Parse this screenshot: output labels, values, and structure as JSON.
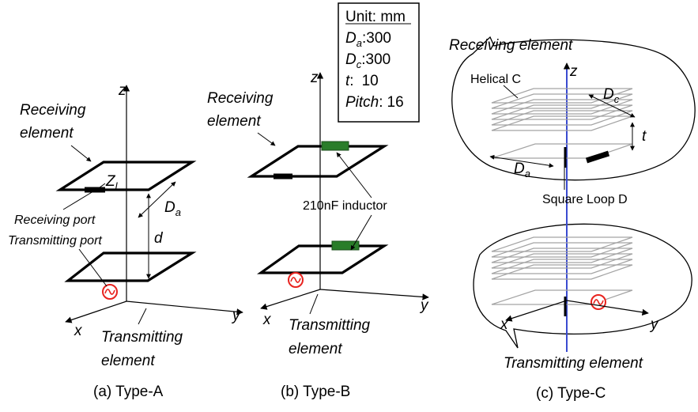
{
  "units_box": {
    "title": "Unit: mm",
    "rows": [
      {
        "sym": "D",
        "sub": "a",
        "sep": ":",
        "value": "300"
      },
      {
        "sym": "D",
        "sub": "c",
        "sep": ":",
        "value": "300"
      },
      {
        "sym": "t",
        "sub": "",
        "sep": ":",
        "value": "10"
      },
      {
        "sym": "Pitch",
        "sub": "",
        "sep": ":",
        "value": "16"
      }
    ]
  },
  "panel_a": {
    "caption": "(a) Type-A",
    "receiving_1": "Receiving",
    "receiving_2": "element",
    "transmitting_1": "Transmitting",
    "transmitting_2": "element",
    "receiving_port": "Receiving port",
    "transmitting_port": "Transmitting port",
    "load_sym": "Z",
    "load_sub": "l",
    "da_sym": "D",
    "da_sub": "a",
    "dist": "d",
    "axis_x": "x",
    "axis_y": "y",
    "axis_z": "z"
  },
  "panel_b": {
    "caption": "(b) Type-B",
    "receiving_1": "Receiving",
    "receiving_2": "element",
    "transmitting_1": "Transmitting",
    "transmitting_2": "element",
    "inductor": "210nF inductor",
    "axis_x": "x",
    "axis_y": "y",
    "axis_z": "z"
  },
  "panel_c": {
    "caption": "(c) Type-C",
    "receiving": "Receiving element",
    "transmitting": "Transmitting element",
    "helical": "Helical  C",
    "square_loop": "Square Loop D",
    "dc_sym": "D",
    "dc_sub": "c",
    "da_sym": "D",
    "da_sub": "a",
    "t": "t",
    "axis_x": "x",
    "axis_y": "y",
    "axis_z": "z"
  },
  "colors": {
    "source": "#e8231f",
    "inductor": "#2a7d2a",
    "coil": "#a3a3a3",
    "feed_line": "#3a4bd0"
  }
}
